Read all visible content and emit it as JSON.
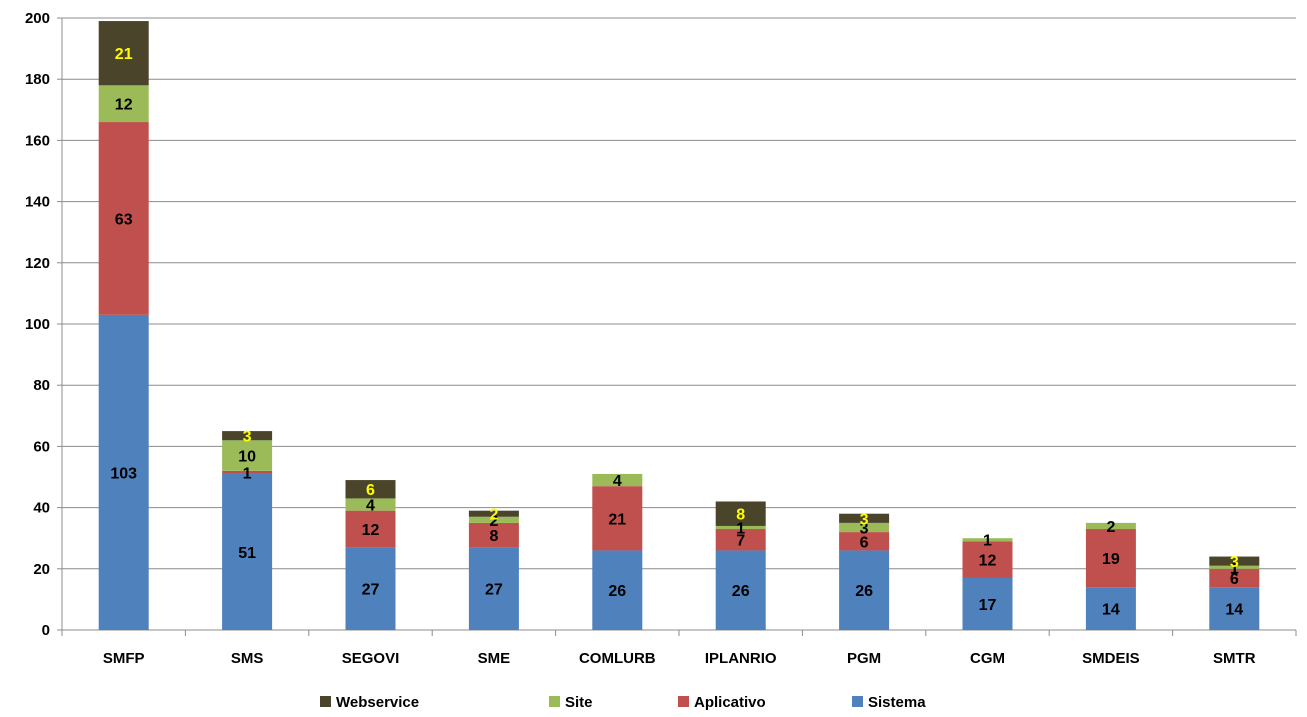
{
  "chart_data": {
    "type": "bar",
    "stacked": true,
    "categories": [
      "SMFP",
      "SMS",
      "SEGOVI",
      "SME",
      "COMLURB",
      "IPLANRIO",
      "PGM",
      "CGM",
      "SMDEIS",
      "SMTR"
    ],
    "series": [
      {
        "name": "Sistema",
        "color": "#4F81BD",
        "label_color": "#000000",
        "values": [
          103,
          51,
          27,
          27,
          26,
          26,
          26,
          17,
          14,
          14
        ]
      },
      {
        "name": "Aplicativo",
        "color": "#C0504D",
        "label_color": "#000000",
        "values": [
          63,
          1,
          12,
          8,
          21,
          7,
          6,
          12,
          19,
          6
        ]
      },
      {
        "name": "Site",
        "color": "#9BBB59",
        "label_color": "#000000",
        "values": [
          12,
          10,
          4,
          2,
          4,
          1,
          3,
          1,
          2,
          1
        ]
      },
      {
        "name": "Webservice",
        "color": "#4A452A",
        "label_color": "#FFFF00",
        "values": [
          21,
          3,
          6,
          2,
          null,
          8,
          3,
          null,
          null,
          3
        ]
      }
    ],
    "ylim": [
      0,
      200
    ],
    "yticks": [
      0,
      20,
      40,
      60,
      80,
      100,
      120,
      140,
      160,
      180,
      200
    ],
    "grid": true,
    "legend_position": "bottom",
    "legend_order": [
      "Webservice",
      "Site",
      "Aplicativo",
      "Sistema"
    ],
    "title": "",
    "xlabel": "",
    "ylabel": ""
  }
}
